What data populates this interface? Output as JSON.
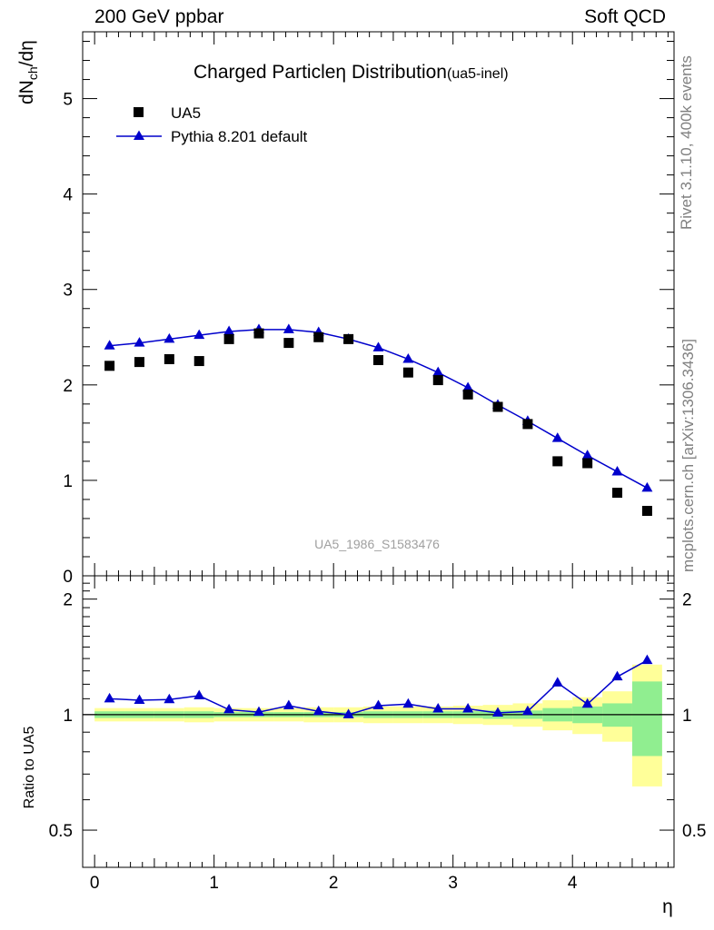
{
  "header": {
    "left": "200 GeV ppbar",
    "right": "Soft QCD"
  },
  "side_labels": {
    "rivet": "Rivet 3.1.10,  400k events",
    "mcplots": "mcplots.cern.ch [arXiv:1306.3436]"
  },
  "colors": {
    "data": "#000000",
    "mc": "#0000cc",
    "band_inner": "#90ee90",
    "band_outer": "#ffff99"
  },
  "chart_data": [
    {
      "type": "scatter",
      "title_main": "Charged Particle",
      "title_eta": "η",
      "title_rest": " Distribution",
      "title_sub": "(ua5-inel)",
      "ylabel_main": "dN",
      "ylabel_sub": "ch",
      "ylabel_tail": "/dη",
      "watermark": "UA5_1986_S1583476",
      "ylim": [
        0,
        5.7
      ],
      "xlim": [
        -0.1,
        4.85
      ],
      "y_ticks": [
        "0",
        "1",
        "2",
        "3",
        "4",
        "5"
      ],
      "legend": {
        "placement": "top-left",
        "entries": [
          "UA5",
          "Pythia 8.201 default"
        ]
      },
      "x": [
        0.125,
        0.375,
        0.625,
        0.875,
        1.125,
        1.375,
        1.625,
        1.875,
        2.125,
        2.375,
        2.625,
        2.875,
        3.125,
        3.375,
        3.625,
        3.875,
        4.125,
        4.375,
        4.625
      ],
      "series": [
        {
          "name": "UA5",
          "marker": "square",
          "values": [
            2.2,
            2.24,
            2.27,
            2.25,
            2.48,
            2.54,
            2.44,
            2.5,
            2.48,
            2.26,
            2.13,
            2.05,
            1.9,
            1.77,
            1.59,
            1.2,
            1.18,
            0.87,
            0.68
          ]
        },
        {
          "name": "Pythia 8.201 default",
          "marker": "triangle",
          "values": [
            2.41,
            2.44,
            2.48,
            2.52,
            2.56,
            2.58,
            2.58,
            2.55,
            2.48,
            2.39,
            2.27,
            2.13,
            1.97,
            1.79,
            1.62,
            1.44,
            1.26,
            1.09,
            0.92
          ]
        }
      ]
    },
    {
      "type": "line",
      "ylabel": "Ratio to UA5",
      "xlabel": "η",
      "ylim": [
        0.4,
        2.3
      ],
      "xlim": [
        -0.1,
        4.85
      ],
      "x_ticks": [
        "0",
        "1",
        "2",
        "3",
        "4"
      ],
      "y_ticks": [
        "0.5",
        "1",
        "2"
      ],
      "x": [
        0.125,
        0.375,
        0.625,
        0.875,
        1.125,
        1.375,
        1.625,
        1.875,
        2.125,
        2.375,
        2.625,
        2.875,
        3.125,
        3.375,
        3.625,
        3.875,
        4.125,
        4.375,
        4.625
      ],
      "series": [
        {
          "name": "Pythia 8.201 default",
          "values": [
            1.1,
            1.09,
            1.095,
            1.12,
            1.03,
            1.015,
            1.055,
            1.02,
            1.0,
            1.055,
            1.065,
            1.035,
            1.035,
            1.01,
            1.02,
            1.21,
            1.065,
            1.255,
            1.385
          ]
        }
      ],
      "bands": {
        "inner_half": [
          0.02,
          0.02,
          0.02,
          0.02,
          0.015,
          0.015,
          0.015,
          0.015,
          0.015,
          0.02,
          0.02,
          0.02,
          0.02,
          0.025,
          0.025,
          0.04,
          0.05,
          0.07,
          0.22
        ],
        "outer_half": [
          0.04,
          0.04,
          0.04,
          0.045,
          0.04,
          0.04,
          0.04,
          0.045,
          0.045,
          0.05,
          0.05,
          0.05,
          0.055,
          0.06,
          0.07,
          0.09,
          0.11,
          0.15,
          0.35
        ]
      }
    }
  ]
}
